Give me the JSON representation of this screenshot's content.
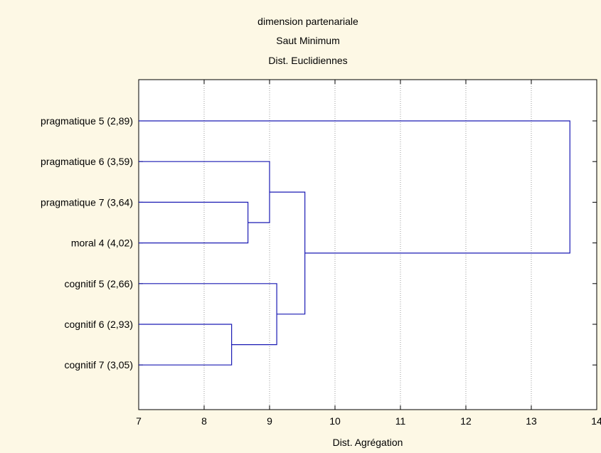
{
  "chart_data": {
    "type": "dendrogram",
    "title": "dimension partenariale",
    "subtitle_1": "Saut Minimum",
    "subtitle_2": "Dist. Euclidiennes",
    "xlabel": "Dist. Agrégation",
    "xlim": [
      7,
      14
    ],
    "x_ticks": [
      7,
      8,
      9,
      10,
      11,
      12,
      13,
      14
    ],
    "grid": true,
    "leaves": [
      "pragmatique 5 (2,89)",
      "pragmatique 6 (3,59)",
      "pragmatique 7 (3,64)",
      "moral 4 (4,02)",
      "cognitif 5 (2,66)",
      "cognitif 6 (2,93)",
      "cognitif 7 (3,05)"
    ],
    "merges": [
      {
        "a": "L5",
        "b": "L6",
        "height": 8.42
      },
      {
        "a": "L2",
        "b": "L3",
        "height": 8.67
      },
      {
        "a": "L1",
        "b": "N1",
        "height": 9.0
      },
      {
        "a": "L4",
        "b": "N0",
        "height": 9.11
      },
      {
        "a": "N2",
        "b": "N3",
        "height": 9.54
      },
      {
        "a": "L0",
        "b": "N4",
        "height": 13.59
      }
    ],
    "line_color": "#1a1ab4"
  }
}
